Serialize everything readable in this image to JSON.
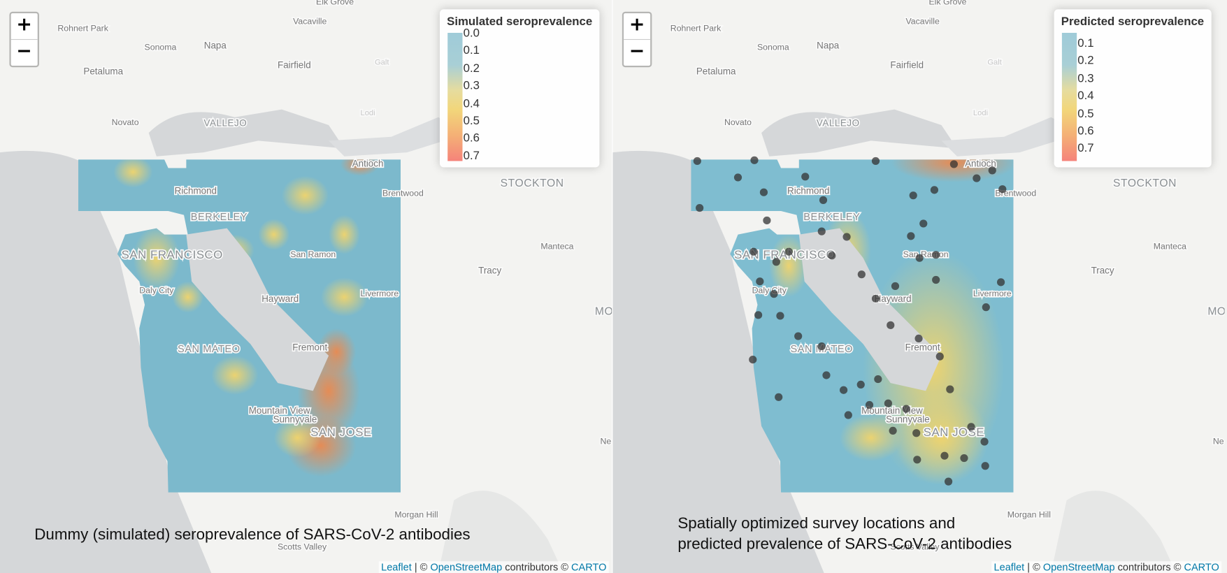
{
  "places": [
    {
      "name": "Elk Grove"
    },
    {
      "name": "Rohnert Park"
    },
    {
      "name": "Vacaville"
    },
    {
      "name": "Sonoma"
    },
    {
      "name": "Napa"
    },
    {
      "name": "Fairfield"
    },
    {
      "name": "Petaluma"
    },
    {
      "name": "Novato"
    },
    {
      "name": "VALLEJO"
    },
    {
      "name": "Galt"
    },
    {
      "name": "Lodi"
    },
    {
      "name": "Antioch"
    },
    {
      "name": "Richmond"
    },
    {
      "name": "Brentwood"
    },
    {
      "name": "STOCKTON"
    },
    {
      "name": "BERKELEY"
    },
    {
      "name": "SAN FRANCISCO"
    },
    {
      "name": "San Ramon"
    },
    {
      "name": "Manteca"
    },
    {
      "name": "Tracy"
    },
    {
      "name": "Daly City"
    },
    {
      "name": "Hayward"
    },
    {
      "name": "Livermore"
    },
    {
      "name": "MO"
    },
    {
      "name": "SAN MATEO"
    },
    {
      "name": "Fremont"
    },
    {
      "name": "Mountain View"
    },
    {
      "name": "Sunnyvale"
    },
    {
      "name": "SAN JOSE"
    },
    {
      "name": "Ne"
    },
    {
      "name": "Morgan Hill"
    },
    {
      "name": "Scotts Valley"
    }
  ],
  "zoom": {
    "in": "+",
    "out": "−"
  },
  "attribution": {
    "leaflet": "Leaflet",
    "sep": " | © ",
    "osm": "OpenStreetMap",
    "mid": " contributors © ",
    "carto": "CARTO"
  },
  "maps": [
    {
      "legend": {
        "title": "Simulated seroprevalence",
        "labels": [
          "0.0",
          "0.1",
          "0.2",
          "0.3",
          "0.4",
          "0.5",
          "0.6",
          "0.7"
        ]
      },
      "caption": [
        "Dummy (simulated) seroprevalence of SARS-CoV-2 antibodies"
      ]
    },
    {
      "legend": {
        "title": "Predicted seroprevalence",
        "labels": [
          "0.1",
          "0.2",
          "0.3",
          "0.4",
          "0.5",
          "0.6",
          "0.7"
        ]
      },
      "caption": [
        "Spatially optimized survey locations and",
        "predicted prevalence of SARS-CoV-2 antibodies"
      ]
    }
  ]
}
